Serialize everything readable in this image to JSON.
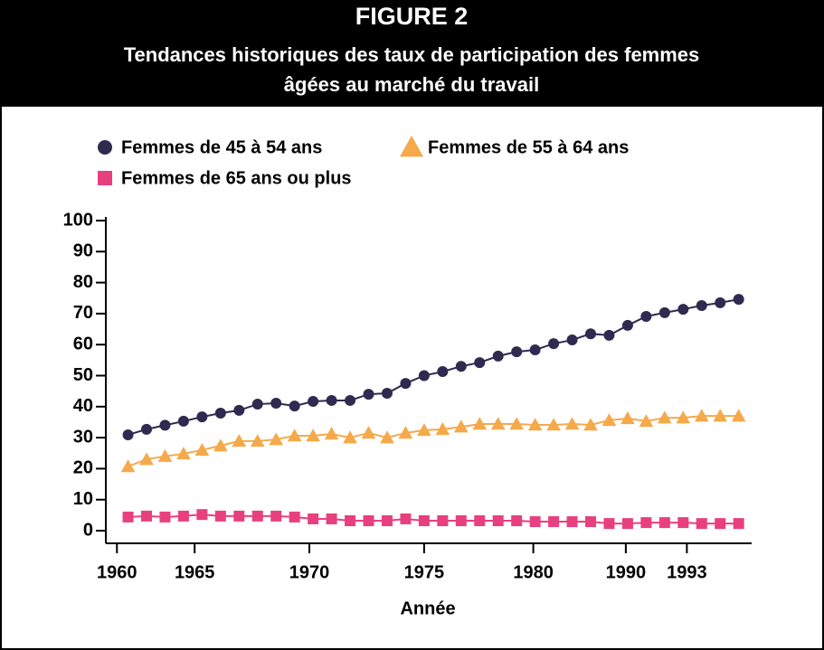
{
  "chart_data": {
    "type": "line",
    "title": "FIGURE 2",
    "subtitle": [
      "Tendances historiques des taux de participation des femmes",
      "âgées au marché du travail"
    ],
    "x_label": "Année",
    "x": [
      1960,
      1961,
      1962,
      1963,
      1964,
      1965,
      1966,
      1967,
      1968,
      1969,
      1970,
      1971,
      1972,
      1973,
      1974,
      1975,
      1976,
      1977,
      1978,
      1979,
      1980,
      1981,
      1982,
      1983,
      1984,
      1985,
      1986,
      1987,
      1988,
      1989,
      1990,
      1991,
      1992,
      1993
    ],
    "xlim": [
      1958.8,
      1993.7
    ],
    "xticks": [
      {
        "value": 1959.4,
        "label": "1960"
      },
      {
        "value": 1963.6,
        "label": "1965"
      },
      {
        "value": 1969.8,
        "label": "1970"
      },
      {
        "value": 1976.0,
        "label": "1975"
      },
      {
        "value": 1981.9,
        "label": "1980"
      },
      {
        "value": 1986.9,
        "label": "1990"
      },
      {
        "value": 1990.2,
        "label": "1993"
      }
    ],
    "ylim": [
      0,
      100
    ],
    "yticks": [
      0,
      10,
      20,
      30,
      40,
      50,
      60,
      70,
      80,
      90,
      100
    ],
    "series": [
      {
        "name": "Femmes de 45 à 54 ans",
        "color": "#2f2a4f",
        "marker": "circle",
        "values": [
          30.9,
          32.7,
          34,
          35.3,
          36.7,
          37.9,
          38.8,
          40.8,
          41.1,
          40.2,
          41.7,
          42,
          42,
          44,
          44.3,
          47.5,
          50,
          51.3,
          53,
          54.2,
          56.3,
          57.7,
          58.3,
          60.3,
          61.5,
          63.5,
          63,
          66.2,
          69.1,
          70.3,
          71.4,
          72.6,
          73.5,
          74.6
        ]
      },
      {
        "name": "Femmes de 55 à 64 ans",
        "color": "#f5a94a",
        "marker": "triangle",
        "values": [
          20.7,
          23,
          24,
          24.8,
          26,
          27.4,
          28.9,
          28.9,
          29.4,
          30.6,
          30.6,
          31.2,
          30,
          31.5,
          30,
          31.5,
          32.4,
          32.7,
          33.5,
          34.4,
          34.4,
          34.4,
          34.1,
          34.1,
          34.4,
          34.1,
          35.6,
          36.2,
          35.3,
          36.4,
          36.4,
          37,
          37,
          37
        ]
      },
      {
        "name": "Femmes de 65 ans ou plus",
        "color": "#e8407f",
        "marker": "square",
        "values": [
          4.4,
          4.7,
          4.4,
          4.7,
          5.2,
          4.7,
          4.7,
          4.7,
          4.7,
          4.4,
          3.8,
          3.8,
          3.2,
          3.2,
          3.2,
          3.8,
          3.2,
          3.2,
          3.2,
          3.2,
          3.2,
          3.2,
          2.9,
          2.9,
          2.9,
          2.9,
          2.3,
          2.3,
          2.6,
          2.6,
          2.6,
          2.3,
          2.3,
          2.3
        ]
      }
    ]
  }
}
